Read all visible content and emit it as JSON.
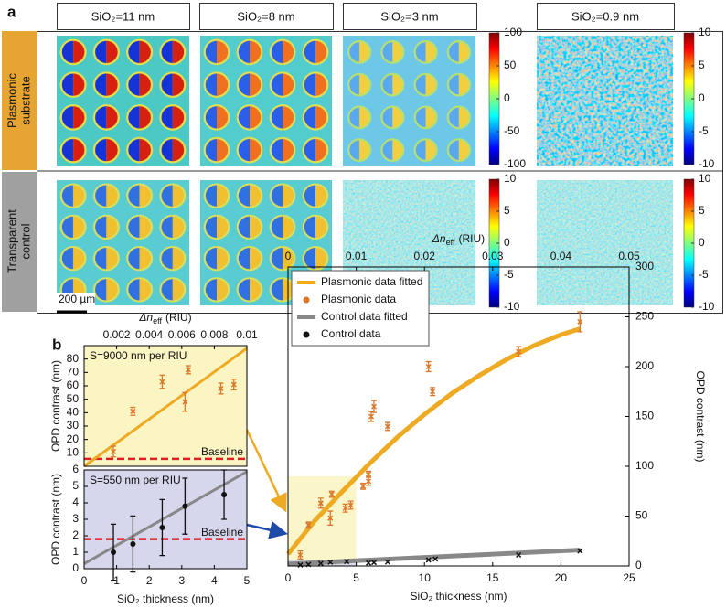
{
  "panel_a": {
    "label": "a",
    "columns": [
      "SiO₂=11 nm",
      "SiO₂=8 nm",
      "SiO₂=3 nm",
      "SiO₂=0.9 nm"
    ],
    "rows": [
      [
        "Plasmonic",
        "substrate"
      ],
      [
        "Transparent",
        "control"
      ]
    ],
    "scale_bar": "200 µm",
    "colorbars": [
      {
        "lim": [
          -100,
          100
        ],
        "ticks": [
          100,
          50,
          0,
          -50,
          -100
        ]
      },
      {
        "lim": [
          -10,
          10
        ],
        "ticks": [
          10,
          5,
          0,
          -5,
          -10
        ]
      },
      {
        "lim": [
          -10,
          10
        ],
        "ticks": [
          10,
          5,
          0,
          -5,
          -10
        ]
      },
      {
        "lim": [
          -10,
          10
        ],
        "ticks": [
          10,
          5,
          0,
          -5,
          -10
        ]
      }
    ]
  },
  "panel_b": {
    "label": "b"
  },
  "chart_data": [
    {
      "type": "scatter",
      "xlabel": "SiO₂ thickness (nm)",
      "ylabel": "OPD contrast (nm)",
      "x2label": {
        "symbol": "Δn",
        "subscript": "eff",
        "unit": "(RIU)"
      },
      "xlim": [
        0,
        25
      ],
      "xticks": [
        0,
        5,
        10,
        15,
        20,
        25
      ],
      "x2lim": [
        0,
        0.05
      ],
      "x2ticks": [
        0,
        0.01,
        0.02,
        0.03,
        0.04,
        0.05
      ],
      "ylim": [
        0,
        300
      ],
      "yticks": [
        0,
        50,
        100,
        150,
        200,
        250,
        300
      ],
      "legend": "upper left",
      "series": [
        {
          "name": "Plasmonic data fitted",
          "color": "#eeaa22",
          "style": "line",
          "x": [
            0,
            2,
            4,
            6,
            8,
            10,
            12,
            14,
            16,
            18,
            20,
            21.4
          ],
          "values": [
            12,
            46,
            75,
            103,
            129,
            152,
            173,
            191,
            207,
            221,
            232,
            238
          ]
        },
        {
          "name": "Plasmonic data",
          "color": "#d9782a",
          "style": "points",
          "marker": "cross",
          "x": [
            0.9,
            1.5,
            2.4,
            3.1,
            3.2,
            4.2,
            4.6,
            5.5,
            5.9,
            5.9,
            6.1,
            6.3,
            7.3,
            10.3,
            10.6,
            16.9,
            21.4
          ],
          "values": [
            11,
            41,
            63,
            48,
            72,
            58,
            61,
            80,
            85,
            92,
            150,
            160,
            140,
            200,
            175,
            215,
            245
          ],
          "errors": [
            4,
            3,
            5,
            7,
            3,
            4,
            4,
            3,
            4,
            3,
            5,
            6,
            4,
            5,
            4,
            5,
            10
          ]
        },
        {
          "name": "Control data fitted",
          "color": "#888888",
          "style": "line",
          "x": [
            0,
            21.4
          ],
          "values": [
            2,
            16
          ]
        },
        {
          "name": "Control data",
          "color": "#111111",
          "style": "points",
          "marker": "cross",
          "x": [
            0.9,
            1.5,
            2.4,
            3.1,
            4.3,
            5.9,
            6.3,
            7.3,
            10.3,
            10.8,
            16.9,
            21.4
          ],
          "values": [
            1,
            1.5,
            2.5,
            3.8,
            4.5,
            3,
            3.5,
            4,
            6,
            7,
            11,
            15
          ]
        }
      ]
    },
    {
      "type": "scatter",
      "ylabel": "OPD contrast (nm)",
      "x2label": {
        "symbol": "Δn",
        "subscript": "eff",
        "unit": "(RIU)"
      },
      "xlim": [
        0,
        5
      ],
      "x2lim": [
        0,
        0.01
      ],
      "x2ticks": [
        0.002,
        0.004,
        0.006,
        0.008,
        0.01
      ],
      "ylim": [
        0,
        90
      ],
      "yticks": [
        10,
        20,
        30,
        40,
        50,
        60,
        70,
        80
      ],
      "background": "#fbf5c4",
      "annotation": "S=9000 nm per RIU",
      "baseline": {
        "value": 5.5,
        "label": "Baseline"
      },
      "series": [
        {
          "name": "Plasmonic data fitted",
          "color": "#eeaa22",
          "style": "line",
          "x": [
            0,
            5
          ],
          "values": [
            0,
            88
          ]
        },
        {
          "name": "Plasmonic data",
          "color": "#d9782a",
          "style": "points",
          "marker": "cross",
          "x": [
            0.9,
            1.5,
            2.4,
            3.1,
            3.2,
            4.2,
            4.6
          ],
          "values": [
            11,
            41,
            63,
            48,
            72,
            58,
            61
          ],
          "errors": [
            4,
            3,
            5,
            7,
            3,
            4,
            4
          ]
        }
      ]
    },
    {
      "type": "scatter",
      "xlabel": "SiO₂ thickness (nm)",
      "ylabel": "OPD contrast (nm)",
      "xlim": [
        0,
        5
      ],
      "xticks": [
        0,
        1,
        2,
        3,
        4,
        5
      ],
      "ylim": [
        0,
        6
      ],
      "yticks": [
        0,
        1,
        2,
        3,
        4,
        5,
        6
      ],
      "background": "#d6d6ec",
      "annotation": "S=550 nm per RIU",
      "baseline": {
        "value": 1.8,
        "label": "Baseline"
      },
      "series": [
        {
          "name": "Control data fitted",
          "color": "#888888",
          "style": "line",
          "x": [
            0,
            5
          ],
          "values": [
            0.3,
            5.9
          ]
        },
        {
          "name": "Control data",
          "color": "#111111",
          "style": "points",
          "marker": "circle",
          "x": [
            0.9,
            1.5,
            2.4,
            3.1,
            4.3
          ],
          "values": [
            1,
            1.5,
            2.5,
            3.8,
            4.5
          ],
          "errors": [
            1.7,
            1.7,
            1.7,
            1.7,
            1.5
          ]
        }
      ]
    }
  ]
}
